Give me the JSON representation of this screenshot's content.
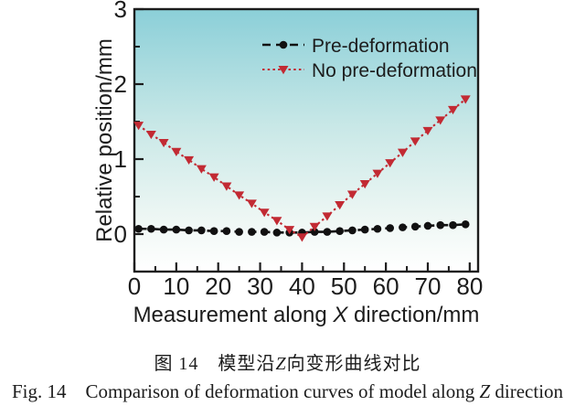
{
  "figure": {
    "caption_zh": {
      "pre": "图 14　模型沿",
      "italic": "Z",
      "post": "向变形曲线对比"
    },
    "caption_en": {
      "pre": "Fig. 14　Comparison of deformation curves of model along ",
      "italic": "Z",
      "post": " direction"
    }
  },
  "chart_data": {
    "type": "line",
    "title": "",
    "xlabel_parts": [
      "Measurement along ",
      "X",
      " direction/mm"
    ],
    "ylabel": "Relative position/mm",
    "xlim": [
      0,
      82
    ],
    "ylim": [
      -0.5,
      3
    ],
    "x_major_ticks": [
      0,
      10,
      20,
      30,
      40,
      50,
      60,
      70,
      80
    ],
    "x_minor_ticks": [
      5,
      15,
      25,
      35,
      45,
      55,
      65,
      75
    ],
    "y_major_ticks": [
      0,
      1,
      2,
      3
    ],
    "y_minor_ticks": [
      0.5,
      1.5,
      2.5
    ],
    "grid": false,
    "legend_position": "top-right-inside",
    "axis_color": "#1c1c1c",
    "background_gradient": [
      "#8bcfd8",
      "#c9e8e7",
      "#eef7f4",
      "#ffffff"
    ],
    "background_offsets": [
      0,
      0.45,
      0.8,
      1
    ],
    "x": [
      1,
      4,
      7,
      10,
      13,
      16,
      19,
      22,
      25,
      28,
      31,
      34,
      37,
      40,
      43,
      46,
      49,
      52,
      55,
      58,
      61,
      64,
      67,
      70,
      73,
      76,
      79
    ],
    "series": [
      {
        "name": "Pre-deformation",
        "color": "#111111",
        "marker": "circle",
        "line_style": "dashed",
        "values": [
          0.07,
          0.07,
          0.06,
          0.06,
          0.05,
          0.05,
          0.04,
          0.04,
          0.03,
          0.03,
          0.03,
          0.02,
          0.02,
          0.02,
          0.03,
          0.03,
          0.04,
          0.05,
          0.06,
          0.07,
          0.08,
          0.09,
          0.1,
          0.11,
          0.12,
          0.12,
          0.13
        ]
      },
      {
        "name": "No pre-deformation",
        "color": "#c22a33",
        "marker": "triangle-down",
        "line_style": "dotted",
        "values": [
          1.45,
          1.33,
          1.22,
          1.1,
          0.99,
          0.87,
          0.76,
          0.64,
          0.52,
          0.41,
          0.29,
          0.18,
          0.06,
          -0.04,
          0.1,
          0.24,
          0.39,
          0.53,
          0.67,
          0.81,
          0.95,
          1.09,
          1.24,
          1.38,
          1.52,
          1.66,
          1.8
        ]
      }
    ]
  }
}
